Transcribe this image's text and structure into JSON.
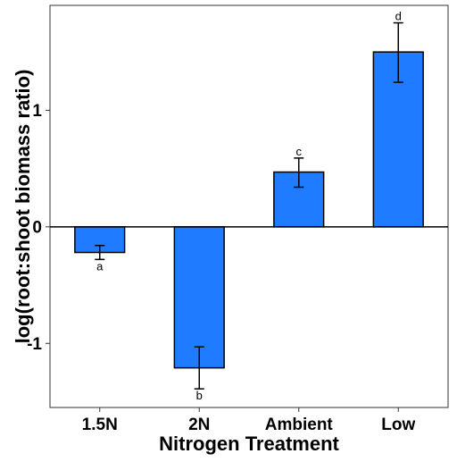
{
  "chart_data": {
    "type": "bar",
    "xlabel": "Nitrogen Treatment",
    "ylabel": "log(root:shoot biomass ratio)",
    "categories": [
      "1.5N",
      "2N",
      "Ambient",
      "Low"
    ],
    "values": [
      -0.22,
      -1.21,
      0.47,
      1.5
    ],
    "error_low": [
      -0.28,
      -1.39,
      0.34,
      1.24
    ],
    "error_high": [
      -0.16,
      -1.03,
      0.59,
      1.75
    ],
    "significance_letters": [
      "a",
      "b",
      "c",
      "d"
    ],
    "yticks": [
      -1,
      0,
      1
    ],
    "ytick_labels": [
      "-1",
      "0",
      "1"
    ],
    "ylim": [
      -1.55,
      1.9
    ],
    "bar_color": "#1f7bff",
    "grid": false
  }
}
